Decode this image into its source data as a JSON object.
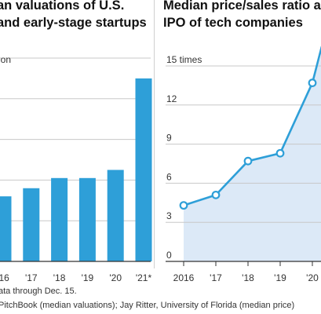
{
  "left_panel": {
    "title_line1": "an valuations of U.S.",
    "title_line2": "and early-stage startups",
    "axis_unit_partial": "ion"
  },
  "right_panel": {
    "title_line1": "Median price/sales ratio a",
    "title_line2": "IPO of tech companies"
  },
  "footnote": {
    "line1": "ata through Dec. 15.",
    "line2": "PitchBook (median valuations); Jay Ritter, University of Florida (median price)"
  },
  "colors": {
    "bar": "#2e9fd8",
    "line": "#2e9fd8",
    "area_fill": "#dce9f7",
    "grid": "#c8c8c8"
  },
  "chart_data": [
    {
      "type": "bar",
      "categories": [
        "'16",
        "'17",
        "'18",
        "'19",
        "'20",
        "'21*"
      ],
      "values": [
        3.2,
        3.6,
        4.1,
        4.1,
        4.5,
        9.0
      ],
      "ylim": [
        0,
        10
      ],
      "grid": true,
      "y_unit_label_visible": "ion"
    },
    {
      "type": "area",
      "categories": [
        "2016",
        "'17",
        "'18",
        "'19",
        "'20"
      ],
      "x": [
        2016,
        2017,
        2018,
        2019,
        2020
      ],
      "values": [
        4.3,
        5.1,
        7.7,
        8.3,
        13.7
      ],
      "ylim": [
        0,
        15
      ],
      "y_ticks": [
        "0",
        "3",
        "6",
        "9",
        "12",
        "15 times"
      ],
      "grid": true
    }
  ]
}
